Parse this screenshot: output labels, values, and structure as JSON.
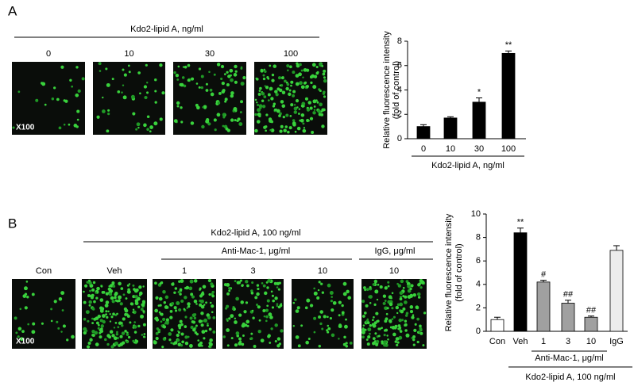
{
  "panels": [
    {
      "label": "A",
      "header": "Kdo2-lipid A, ng/ml",
      "images": [
        "0",
        "10",
        "30",
        "100"
      ],
      "magnification": "X100"
    },
    {
      "label": "B",
      "header": "Kdo2-lipid A, 100 ng/ml",
      "subheaders": [
        "Anti-Mac-1, μg/ml",
        "IgG, μg/ml"
      ],
      "images": [
        "Con",
        "Veh",
        "1",
        "3",
        "10",
        "10"
      ],
      "magnification": "X100"
    }
  ],
  "chart_data": [
    {
      "type": "bar",
      "ylabel": [
        "Relative fluorescence intensity",
        "(fold of control)"
      ],
      "categories": [
        "0",
        "10",
        "30",
        "100"
      ],
      "values": [
        1.0,
        1.7,
        3.0,
        7.0
      ],
      "errors": [
        0.15,
        0.1,
        0.35,
        0.2
      ],
      "colors": [
        "#000000",
        "#000000",
        "#000000",
        "#000000"
      ],
      "ylim": [
        0,
        8
      ],
      "yticks": [
        0,
        2,
        4,
        6,
        8
      ],
      "annotations": [
        {
          "text": "*",
          "category": "30"
        },
        {
          "text": "**",
          "category": "100"
        }
      ],
      "groups": [
        {
          "label": "Kdo2-lipid A, ng/ml",
          "categories": [
            "0",
            "100"
          ]
        }
      ]
    },
    {
      "type": "bar",
      "ylabel": [
        "Relative fluorescence intensity",
        "(fold of control)"
      ],
      "categories": [
        "Con",
        "Veh",
        "1",
        "3",
        "10",
        "IgG"
      ],
      "values": [
        1.0,
        8.4,
        4.2,
        2.4,
        1.2,
        6.9
      ],
      "errors": [
        0.2,
        0.4,
        0.15,
        0.25,
        0.1,
        0.4
      ],
      "colors": [
        "#ffffff",
        "#000000",
        "#a0a0a0",
        "#a0a0a0",
        "#a0a0a0",
        "#ececec"
      ],
      "ylim": [
        0,
        10
      ],
      "yticks": [
        0,
        2,
        4,
        6,
        8,
        10
      ],
      "annotations": [
        {
          "text": "**",
          "category": "Veh"
        },
        {
          "text": "#",
          "category": "1"
        },
        {
          "text": "##",
          "category": "3"
        },
        {
          "text": "##",
          "category": "10"
        }
      ],
      "groups": [
        {
          "label": "Anti-Mac-1, μg/ml",
          "categories": [
            "1",
            "10"
          ]
        },
        {
          "label": "Kdo2-lipid A, 100 ng/ml",
          "categories": [
            "Veh",
            "IgG"
          ]
        }
      ]
    }
  ]
}
